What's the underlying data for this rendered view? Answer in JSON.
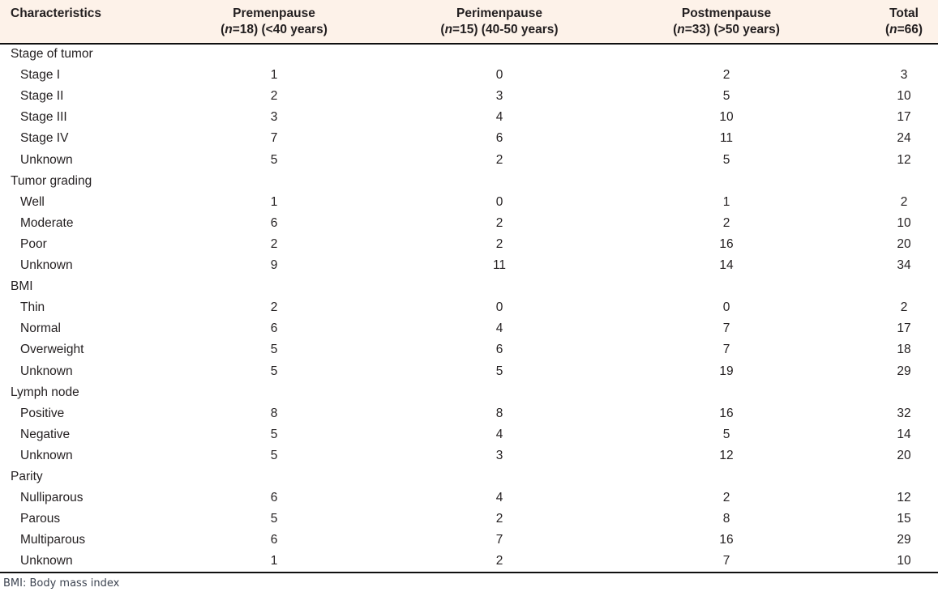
{
  "header": {
    "characteristics_label": "Characteristics",
    "group_columns": [
      {
        "title": "Premenpause",
        "sub_open": "(",
        "sub_n": "n",
        "sub_rest": "=18) (<40 years)"
      },
      {
        "title": "Perimenpause",
        "sub_open": "(",
        "sub_n": "n",
        "sub_rest": "=15) (40-50 years)"
      },
      {
        "title": "Postmenpause",
        "sub_open": "(",
        "sub_n": "n",
        "sub_rest": "=33) (>50 years)"
      },
      {
        "title": "Total",
        "sub_open": "(",
        "sub_n": "n",
        "sub_rest": "=66)"
      }
    ]
  },
  "sections": [
    {
      "label": "Stage of tumor",
      "rows": [
        {
          "label": "Stage I",
          "values": [
            "1",
            "0",
            "2",
            "3"
          ]
        },
        {
          "label": "Stage II",
          "values": [
            "2",
            "3",
            "5",
            "10"
          ]
        },
        {
          "label": "Stage III",
          "values": [
            "3",
            "4",
            "10",
            "17"
          ]
        },
        {
          "label": "Stage IV",
          "values": [
            "7",
            "6",
            "11",
            "24"
          ]
        },
        {
          "label": "Unknown",
          "values": [
            "5",
            "2",
            "5",
            "12"
          ]
        }
      ]
    },
    {
      "label": "Tumor grading",
      "rows": [
        {
          "label": "Well",
          "values": [
            "1",
            "0",
            "1",
            "2"
          ]
        },
        {
          "label": "Moderate",
          "values": [
            "6",
            "2",
            "2",
            "10"
          ]
        },
        {
          "label": "Poor",
          "values": [
            "2",
            "2",
            "16",
            "20"
          ]
        },
        {
          "label": "Unknown",
          "values": [
            "9",
            "11",
            "14",
            "34"
          ]
        }
      ]
    },
    {
      "label": "BMI",
      "rows": [
        {
          "label": "Thin",
          "values": [
            "2",
            "0",
            "0",
            "2"
          ]
        },
        {
          "label": "Normal",
          "values": [
            "6",
            "4",
            "7",
            "17"
          ]
        },
        {
          "label": "Overweight",
          "values": [
            "5",
            "6",
            "7",
            "18"
          ]
        },
        {
          "label": "Unknown",
          "values": [
            "5",
            "5",
            "19",
            "29"
          ]
        }
      ]
    },
    {
      "label": "Lymph node",
      "rows": [
        {
          "label": "Positive",
          "values": [
            "8",
            "8",
            "16",
            "32"
          ]
        },
        {
          "label": "Negative",
          "values": [
            "5",
            "4",
            "5",
            "14"
          ]
        },
        {
          "label": "Unknown",
          "values": [
            "5",
            "3",
            "12",
            "20"
          ]
        }
      ]
    },
    {
      "label": "Parity",
      "rows": [
        {
          "label": "Nulliparous",
          "values": [
            "6",
            "4",
            "2",
            "12"
          ]
        },
        {
          "label": "Parous",
          "values": [
            "5",
            "2",
            "8",
            "15"
          ]
        },
        {
          "label": "Multiparous",
          "values": [
            "6",
            "7",
            "16",
            "29"
          ]
        },
        {
          "label": "Unknown",
          "values": [
            "1",
            "2",
            "7",
            "10"
          ]
        }
      ]
    }
  ],
  "footnote": "BMI: Body mass index",
  "colors": {
    "header_bg": "#fdf2e9",
    "text": "#231f20",
    "rule": "#101010",
    "footnote_text": "#3d4451"
  }
}
